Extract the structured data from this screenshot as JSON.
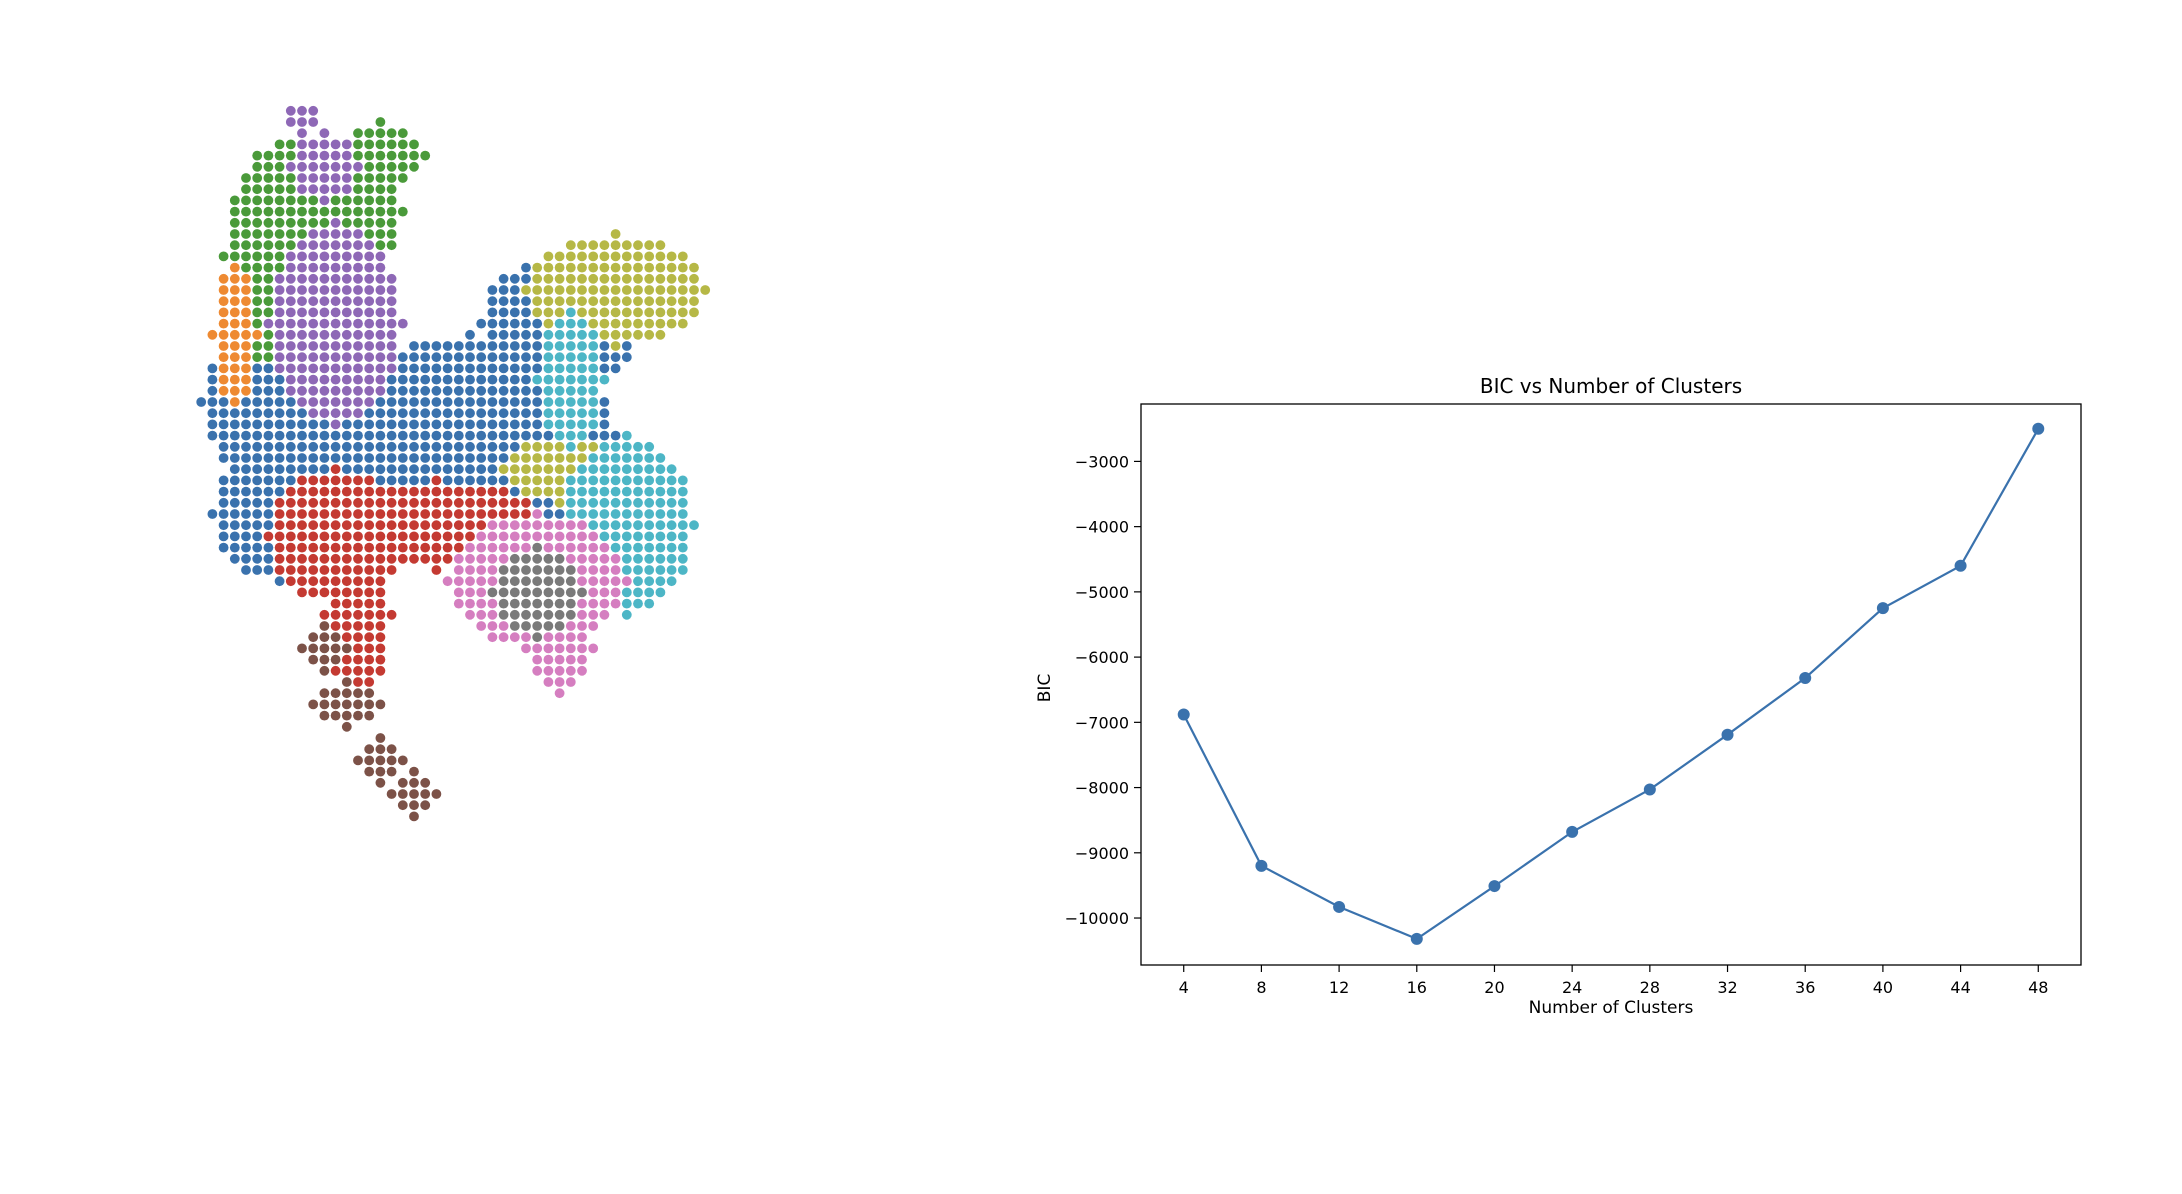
{
  "chart_data": [
    {
      "type": "scatter",
      "title": "",
      "xlabel": "",
      "ylabel": "",
      "axes_visible": false,
      "description_of_marks": "grid of colored points forming a map, each point colored by cluster",
      "colors": {
        "blue": "#3a72ad",
        "green": "#4a9a3a",
        "purple": "#8e68b6",
        "orange": "#ee8a32",
        "red": "#c43a32",
        "olive": "#b6b846",
        "cyan": "#4db6c6",
        "pink": "#d57ec0",
        "gray": "#7a7a7a",
        "brown": "#7c5248"
      }
    },
    {
      "type": "line",
      "title": "BIC vs Number of Clusters",
      "xlabel": "Number of Clusters",
      "ylabel": "BIC",
      "x": [
        4,
        8,
        12,
        16,
        20,
        24,
        28,
        32,
        36,
        40,
        44,
        48
      ],
      "series": [
        {
          "values": [
            -6880,
            -9200,
            -9830,
            -10320,
            -9510,
            -8680,
            -8030,
            -7190,
            -6320,
            -5250,
            -4600,
            -2500
          ]
        }
      ],
      "xticks": [
        4,
        8,
        12,
        16,
        20,
        24,
        28,
        32,
        36,
        40,
        44,
        48
      ],
      "yticks": [
        -10000,
        -9000,
        -8000,
        -7000,
        -6000,
        -5000,
        -4000,
        -3000
      ],
      "ytick_labels": [
        "−10000",
        "−9000",
        "−8000",
        "−7000",
        "−6000",
        "−5000",
        "−4000",
        "−3000"
      ],
      "xlim": [
        1.8,
        50.2
      ],
      "ylim": [
        -10720,
        -2120
      ],
      "grid": false,
      "line_color": "#3a72ad",
      "marker": "circle"
    }
  ]
}
